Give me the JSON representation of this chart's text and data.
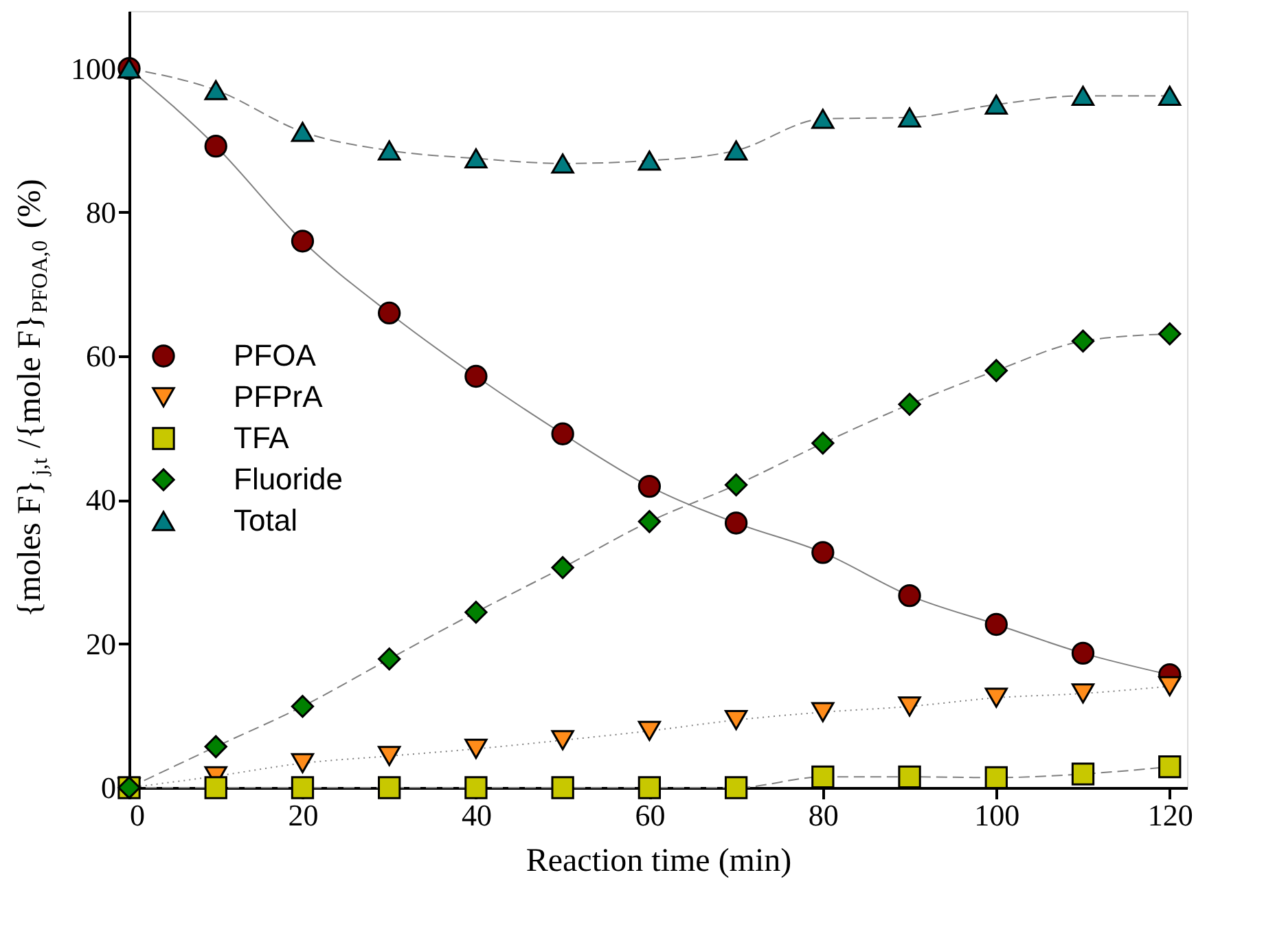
{
  "chart_data": {
    "type": "line",
    "xlabel": "Reaction time (min)",
    "ylabel": "{moles F}$_{j,t}$/{mole F}$_{PFOA,0}$ (%)",
    "x": [
      0,
      10,
      20,
      30,
      40,
      50,
      60,
      70,
      80,
      90,
      100,
      110,
      120
    ],
    "series": [
      {
        "name": "PFOA",
        "color": "#7f0000",
        "marker": "circle",
        "line_style": "solid",
        "values": [
          100,
          89.2,
          76,
          66,
          57.2,
          49.2,
          41.9,
          36.8,
          32.7,
          26.7,
          22.7,
          18.7,
          15.7
        ]
      },
      {
        "name": "PFPrA",
        "color": "#ff8c1a",
        "marker": "triangle-down",
        "line_style": "dotted",
        "values": [
          0,
          1.6,
          3.4,
          4.4,
          5.4,
          6.6,
          7.9,
          9.4,
          10.5,
          11.3,
          12.5,
          13.1,
          14.1
        ]
      },
      {
        "name": "TFA",
        "color": "#c8c800",
        "marker": "square",
        "line_style": "dashed",
        "values": [
          0,
          0,
          0,
          0,
          0,
          0,
          0,
          0,
          1.5,
          1.5,
          1.4,
          1.9,
          2.9
        ]
      },
      {
        "name": "Fluoride",
        "color": "#008000",
        "marker": "diamond",
        "line_style": "dashed",
        "values": [
          0,
          5.7,
          11.3,
          17.9,
          24.4,
          30.6,
          37,
          42.1,
          47.9,
          53.3,
          58,
          62.1,
          63.1
        ]
      },
      {
        "name": "Total",
        "color": "#007b80",
        "marker": "triangle",
        "line_style": "dashed",
        "values": [
          100,
          97,
          91.2,
          88.6,
          87.5,
          86.8,
          87.2,
          88.6,
          93,
          93.2,
          95,
          96.2,
          96.2
        ]
      }
    ],
    "xlim": [
      0,
      122
    ],
    "ylim": [
      0,
      108
    ],
    "xticks": [
      0,
      20,
      40,
      60,
      80,
      100,
      120
    ],
    "yticks": [
      0,
      20,
      40,
      60,
      80,
      100
    ],
    "grid": false,
    "legend": "left"
  }
}
